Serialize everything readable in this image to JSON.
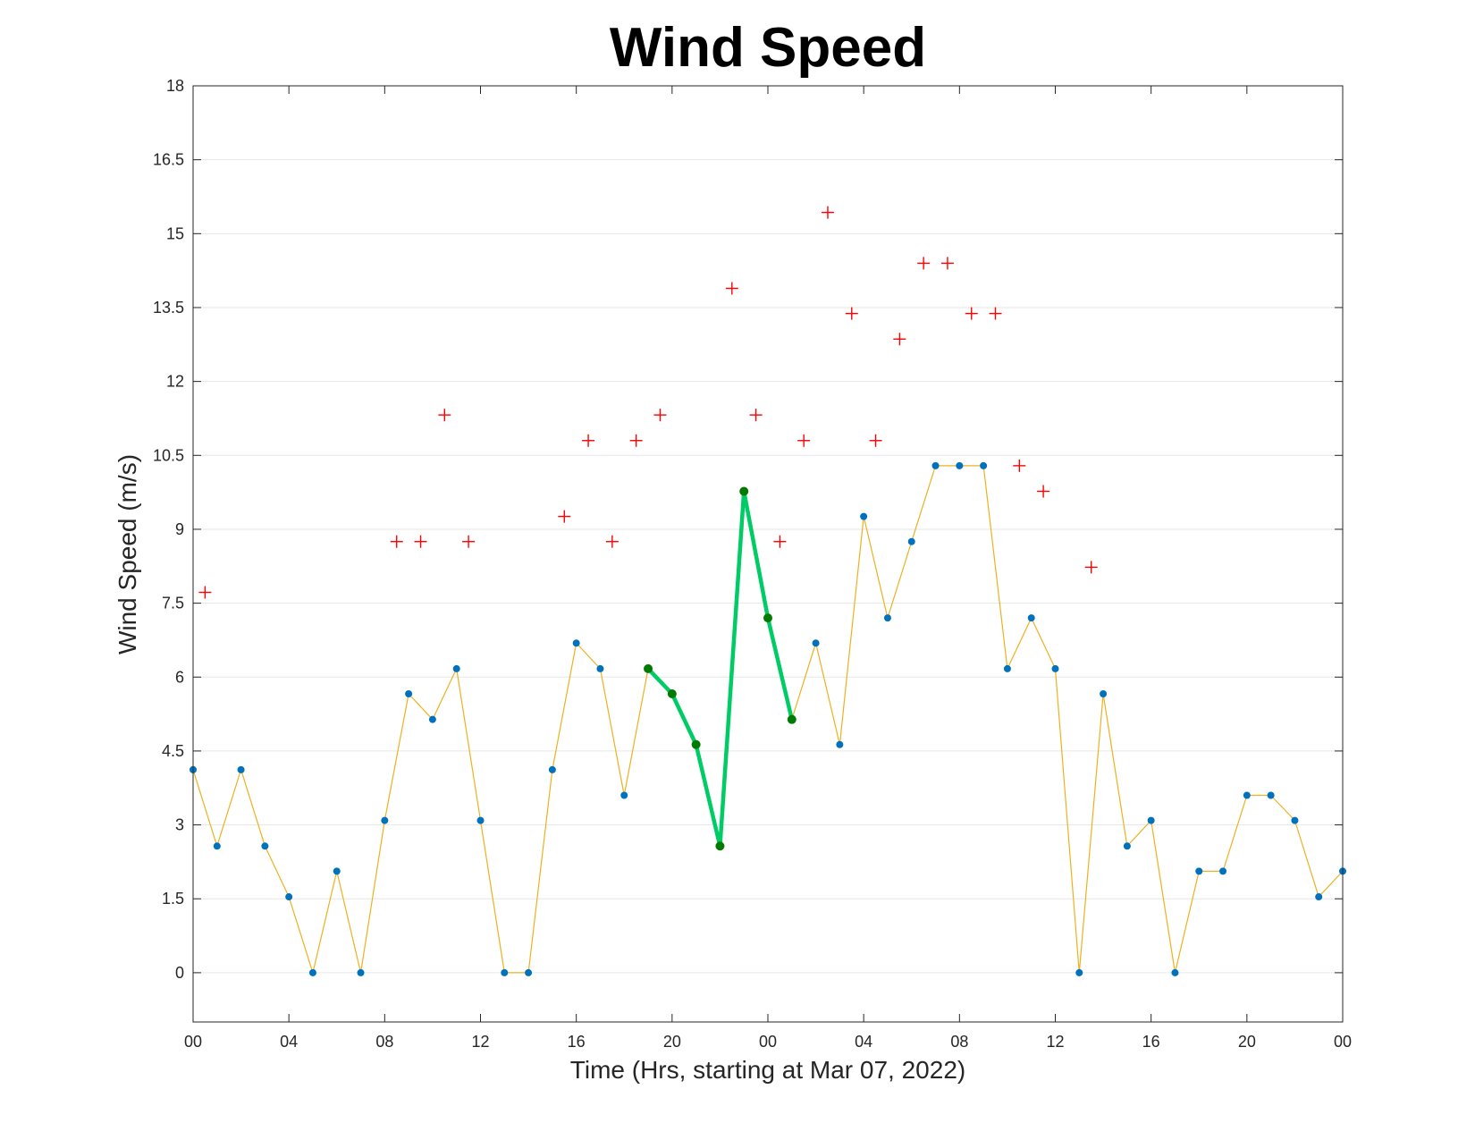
{
  "chart_data": {
    "type": "line",
    "title": "Wind Speed",
    "xlabel": "Time (Hrs, starting at Mar 07, 2022)",
    "ylabel": "Wind Speed (m/s)",
    "ylim": [
      -1,
      18
    ],
    "xlim_hours": [
      0,
      48
    ],
    "x_tick_labels": [
      "00",
      "04",
      "08",
      "12",
      "16",
      "20",
      "00",
      "04",
      "08",
      "12",
      "16",
      "20",
      "00"
    ],
    "y_tick_labels": [
      "0",
      "1.5",
      "3",
      "4.5",
      "6",
      "7.5",
      "9",
      "10.5",
      "12",
      "13.5",
      "15",
      "16.5",
      "18"
    ],
    "grid": "horizontal",
    "series": [
      {
        "color": "#EDB120",
        "marker_color": "#0072BD",
        "x_hours": [
          0,
          1,
          2,
          3,
          4,
          5,
          6,
          7,
          8,
          9,
          10,
          11,
          12,
          13,
          14,
          15,
          16,
          17,
          18,
          19,
          20,
          21,
          22,
          23,
          24,
          25,
          26,
          27,
          28,
          29,
          30,
          31,
          32,
          33,
          34,
          35,
          36,
          37,
          38,
          39,
          40,
          41,
          42,
          43,
          44,
          45,
          46,
          47,
          48
        ],
        "values": [
          4.12,
          2.57,
          4.12,
          2.57,
          1.54,
          0,
          2.06,
          0,
          3.09,
          5.66,
          5.14,
          6.17,
          3.09,
          0,
          0,
          4.12,
          6.69,
          6.17,
          3.6,
          6.17,
          5.66,
          4.63,
          2.57,
          9.77,
          7.2,
          5.14,
          6.69,
          4.63,
          9.26,
          7.2,
          8.75,
          10.29,
          10.29,
          10.29,
          6.17,
          7.2,
          6.17,
          0,
          5.66,
          2.57,
          3.09,
          0,
          2.06,
          2.06,
          3.6,
          3.6,
          3.09,
          1.54,
          2.06
        ]
      },
      {
        "color": "#00CC66",
        "marker_color": "#007A00",
        "x_hours": [
          19,
          20,
          21,
          22,
          23,
          24,
          25
        ],
        "values": [
          6.17,
          5.66,
          4.63,
          2.57,
          9.77,
          7.2,
          5.14
        ]
      },
      {
        "color": "#FF0000",
        "marker": "+",
        "x_hours": [
          0.5,
          8.5,
          9.5,
          10.5,
          11.5,
          15.5,
          16.5,
          17.5,
          18.5,
          19.5,
          22.5,
          23.5,
          24.5,
          25.5,
          26.5,
          27.5,
          28.5,
          29.5,
          30.5,
          31.5,
          32.5,
          33.5,
          34.5,
          35.5,
          37.5
        ],
        "values": [
          7.72,
          8.75,
          8.75,
          11.32,
          8.75,
          9.26,
          10.8,
          8.75,
          10.8,
          11.32,
          13.89,
          11.32,
          8.75,
          10.8,
          15.43,
          13.38,
          10.8,
          12.86,
          14.4,
          14.4,
          13.38,
          13.38,
          10.29,
          9.77,
          8.23
        ]
      }
    ]
  }
}
